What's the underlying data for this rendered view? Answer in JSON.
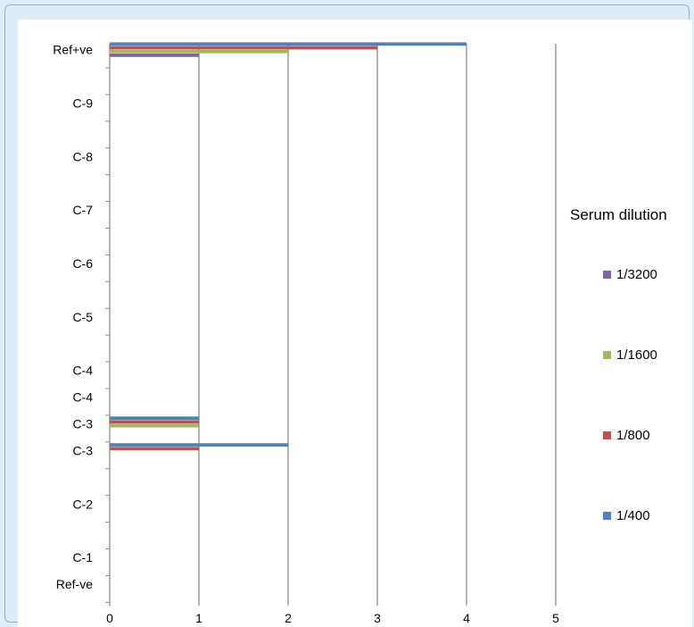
{
  "chart_data": {
    "type": "bar",
    "orientation": "horizontal",
    "categories": [
      "Ref-ve",
      "C-1",
      "C-1",
      "C-2",
      "C-2",
      "C-3",
      "C-3",
      "C-4",
      "C-4",
      "C-4",
      "C-5",
      "C-5",
      "C-6",
      "C-6",
      "C-7",
      "C-7",
      "C-8",
      "C-8",
      "C-9",
      "C-9",
      "Ref+ve"
    ],
    "category_ticks_drawn": [
      0,
      1,
      3,
      5,
      6,
      7,
      8,
      10,
      12,
      14,
      16,
      18,
      20
    ],
    "series": [
      {
        "name": "1/400",
        "color": "#4f81bd",
        "values": [
          0,
          0,
          0,
          0,
          0,
          2,
          1,
          0,
          0,
          0,
          0,
          0,
          0,
          0,
          0,
          0,
          0,
          0,
          0,
          0,
          4
        ]
      },
      {
        "name": "1/800",
        "color": "#c0504d",
        "values": [
          0,
          0,
          0,
          0,
          0,
          1,
          1,
          0,
          0,
          0,
          0,
          0,
          0,
          0,
          0,
          0,
          0,
          0,
          0,
          0,
          3
        ]
      },
      {
        "name": "1/1600",
        "color": "#9bbb59",
        "values": [
          0,
          0,
          0,
          0,
          0,
          0,
          1,
          0,
          0,
          0,
          0,
          0,
          0,
          0,
          0,
          0,
          0,
          0,
          0,
          0,
          2
        ]
      },
      {
        "name": "1/3200",
        "color": "#8064a2",
        "values": [
          0,
          0,
          0,
          0,
          0,
          0,
          0,
          0,
          0,
          0,
          0,
          0,
          0,
          0,
          0,
          0,
          0,
          0,
          0,
          0,
          1
        ]
      }
    ],
    "xlim": [
      0,
      5
    ],
    "xticks": [
      "0",
      "1",
      "2",
      "3",
      "4",
      "5"
    ],
    "grid": "vertical",
    "legend_title": "Serum dilution",
    "legend_position": "right",
    "legend_order": [
      "1/3200",
      "1/1600",
      "1/800",
      "1/400"
    ]
  }
}
